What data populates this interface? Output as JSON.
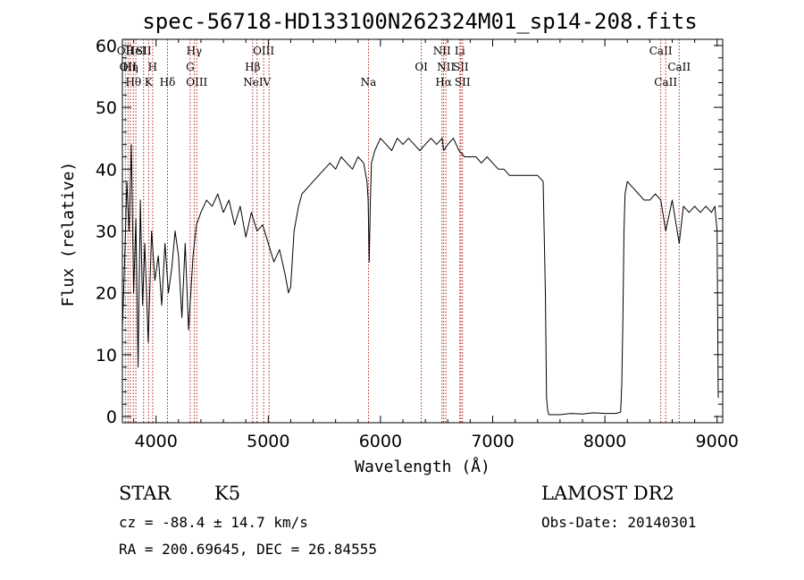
{
  "chart_data": {
    "type": "line",
    "title": "spec-56718-HD133100N262324M01_sp14-208.fits",
    "xlabel": "Wavelength (Å)",
    "ylabel": "Flux (relative)",
    "xlim": [
      3700,
      9050
    ],
    "ylim": [
      -1,
      61
    ],
    "xticks": [
      4000,
      5000,
      6000,
      7000,
      8000,
      9000
    ],
    "yticks": [
      0,
      10,
      20,
      30,
      40,
      50,
      60
    ],
    "xtick_labels": [
      "4000",
      "5000",
      "6000",
      "7000",
      "8000",
      "9000"
    ],
    "ytick_labels": [
      "0",
      "10",
      "20",
      "30",
      "40",
      "50",
      "60"
    ],
    "line_color": "#000000",
    "marker_color": "#b22222",
    "series": [
      {
        "x": [
          3700,
          3720,
          3740,
          3760,
          3780,
          3800,
          3820,
          3840,
          3860,
          3880,
          3900,
          3930,
          3960,
          3990,
          4020,
          4050,
          4080,
          4110,
          4140,
          4170,
          4200,
          4230,
          4260,
          4290,
          4310,
          4330,
          4360,
          4400,
          4450,
          4500,
          4550,
          4600,
          4650,
          4700,
          4750,
          4800,
          4850,
          4900,
          4950,
          5000,
          5050,
          5100,
          5150,
          5180,
          5200,
          5230,
          5270,
          5300,
          5350,
          5400,
          5450,
          5500,
          5550,
          5600,
          5650,
          5700,
          5750,
          5800,
          5850,
          5880,
          5890,
          5895,
          5900,
          5910,
          5920,
          5950,
          6000,
          6050,
          6100,
          6150,
          6200,
          6250,
          6300,
          6350,
          6400,
          6450,
          6500,
          6550,
          6563,
          6600,
          6650,
          6700,
          6750,
          6800,
          6850,
          6900,
          6950,
          7000,
          7050,
          7100,
          7150,
          7200,
          7250,
          7300,
          7350,
          7400,
          7450,
          7470,
          7480,
          7490,
          7500,
          7600,
          7700,
          7800,
          7900,
          8000,
          8100,
          8140,
          8150,
          8160,
          8170,
          8180,
          8200,
          8250,
          8300,
          8350,
          8400,
          8450,
          8498,
          8542,
          8600,
          8662,
          8700,
          8750,
          8800,
          8850,
          8900,
          8950,
          8980,
          9000,
          9010
        ],
        "y": [
          14,
          25,
          38,
          30,
          44,
          20,
          32,
          8,
          35,
          18,
          28,
          12,
          30,
          22,
          26,
          18,
          28,
          20,
          24,
          30,
          26,
          16,
          28,
          14,
          20,
          26,
          31,
          33,
          35,
          34,
          36,
          33,
          35,
          31,
          34,
          29,
          33,
          30,
          31,
          28,
          25,
          27,
          23,
          20,
          21,
          30,
          34,
          36,
          37,
          38,
          39,
          40,
          41,
          40,
          42,
          41,
          40,
          42,
          41,
          38,
          35,
          30,
          25,
          35,
          41,
          43,
          45,
          44,
          43,
          45,
          44,
          45,
          44,
          43,
          44,
          45,
          44,
          45,
          43,
          44,
          45,
          43,
          42,
          42,
          42,
          41,
          42,
          41,
          40,
          40,
          39,
          39,
          39,
          39,
          39,
          39,
          38,
          20,
          3,
          1,
          0.3,
          0.3,
          0.5,
          0.4,
          0.6,
          0.5,
          0.5,
          0.7,
          5,
          15,
          30,
          36,
          38,
          37,
          36,
          35,
          35,
          36,
          35,
          30,
          35,
          28,
          34,
          33,
          34,
          33,
          34,
          33,
          34,
          30,
          3
        ]
      }
    ],
    "lines": [
      {
        "wl": 3727,
        "labels": [
          "OII"
        ],
        "rows": [
          0
        ]
      },
      {
        "wl": 3750,
        "labels": [
          "OII"
        ],
        "rows": [
          1
        ]
      },
      {
        "wl": 3771,
        "labels": [
          "Hη"
        ],
        "rows": [
          1
        ]
      },
      {
        "wl": 3798,
        "labels": [
          "Hθ"
        ],
        "rows": [
          2
        ]
      },
      {
        "wl": 3820,
        "labels": [
          "HeI"
        ],
        "rows": [
          0
        ]
      },
      {
        "wl": 3889,
        "labels": [
          "SII"
        ],
        "rows": [
          0
        ]
      },
      {
        "wl": 3934,
        "labels": [
          "K"
        ],
        "rows": [
          2
        ]
      },
      {
        "wl": 3970,
        "labels": [
          "H"
        ],
        "rows": [
          1
        ]
      },
      {
        "wl": 4102,
        "labels": [
          "Hδ"
        ],
        "rows": [
          2
        ]
      },
      {
        "wl": 4304,
        "labels": [
          "G"
        ],
        "rows": [
          1
        ]
      },
      {
        "wl": 4340,
        "labels": [
          "Hγ"
        ],
        "rows": [
          0
        ]
      },
      {
        "wl": 4363,
        "labels": [
          "OIII"
        ],
        "rows": [
          2
        ]
      },
      {
        "wl": 4861,
        "labels": [
          "Hβ"
        ],
        "rows": [
          1
        ]
      },
      {
        "wl": 4900,
        "labels": [
          "NeIV"
        ],
        "rows": [
          2
        ]
      },
      {
        "wl": 4959,
        "labels": [
          "OIII"
        ],
        "rows": [
          0
        ]
      },
      {
        "wl": 5007,
        "labels": [],
        "rows": []
      },
      {
        "wl": 5893,
        "labels": [
          "Na"
        ],
        "rows": [
          2
        ]
      },
      {
        "wl": 6364,
        "labels": [
          "OI"
        ],
        "rows": [
          1
        ]
      },
      {
        "wl": 6548,
        "labels": [
          "NII"
        ],
        "rows": [
          0
        ]
      },
      {
        "wl": 6563,
        "labels": [
          "Hα"
        ],
        "rows": [
          2
        ]
      },
      {
        "wl": 6583,
        "labels": [
          "NII"
        ],
        "rows": [
          1
        ]
      },
      {
        "wl": 6708,
        "labels": [
          "Li"
        ],
        "rows": [
          0
        ]
      },
      {
        "wl": 6716,
        "labels": [
          "SII"
        ],
        "rows": [
          1
        ]
      },
      {
        "wl": 6731,
        "labels": [
          "SII"
        ],
        "rows": [
          2
        ]
      },
      {
        "wl": 8498,
        "labels": [
          "CaII"
        ],
        "rows": [
          0
        ]
      },
      {
        "wl": 8542,
        "labels": [
          "CaII"
        ],
        "rows": [
          2
        ]
      },
      {
        "wl": 8662,
        "labels": [
          "CaII"
        ],
        "rows": [
          1
        ]
      }
    ]
  },
  "info": {
    "class": "STAR",
    "subclass": "K5",
    "survey": "LAMOST DR2",
    "cz": "cz = -88.4 ± 14.7 km/s",
    "obsdate": "Obs-Date: 20140301",
    "radec": "RA = 200.69645, DEC =  26.84555"
  }
}
